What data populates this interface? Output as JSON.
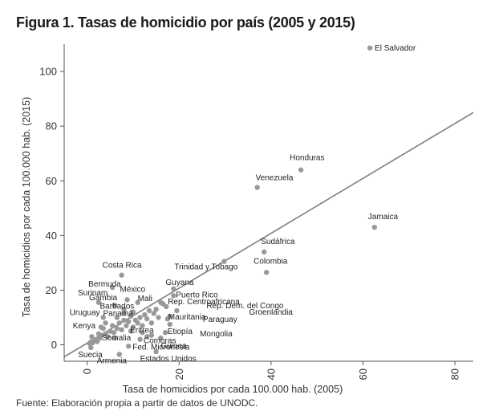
{
  "title": "Figura 1. Tasas de homicidio por país (2005 y 2015)",
  "source": "Fuente: Elaboración propia a partir de datos de UNODC.",
  "colors": {
    "point": "#999999",
    "fit_line": "#7f7f7f",
    "axis": "#555555",
    "text": "#222222"
  },
  "chart_data": {
    "type": "scatter",
    "title": "Figura 1. Tasas de homicidio por país (2005 y 2015)",
    "xlabel": "Tasa de homicidios por cada 100.000 hab. (2005)",
    "ylabel": "Tasa de homicidios por cada 100.000 hab. (2015)",
    "xlim": [
      -5,
      84
    ],
    "ylim": [
      -6,
      110
    ],
    "xticks": [
      0,
      20,
      40,
      60,
      80
    ],
    "yticks": [
      0,
      20,
      40,
      60,
      80,
      100
    ],
    "grid": false,
    "fit_line": {
      "from": [
        -5,
        -4.4
      ],
      "to": [
        84,
        85
      ]
    },
    "points": [
      {
        "x": 61.5,
        "y": 108.6,
        "label": "El Salvador"
      },
      {
        "x": 46.5,
        "y": 64.0,
        "label": "Honduras"
      },
      {
        "x": 37.0,
        "y": 57.6,
        "label": "Venezuela"
      },
      {
        "x": 62.5,
        "y": 43.0,
        "label": "Jamaica"
      },
      {
        "x": 38.5,
        "y": 34.0,
        "label": "Sudáfrica"
      },
      {
        "x": 39.0,
        "y": 26.5,
        "label": "Colombia"
      },
      {
        "x": 29.8,
        "y": 30.5,
        "label": "Trinidad y Tobago"
      },
      {
        "x": 18.8,
        "y": 20.5,
        "label": "Guyana"
      },
      {
        "x": 18.8,
        "y": 18.0,
        "label": "Puerto Rico"
      },
      {
        "x": 16.0,
        "y": 15.5,
        "label": "Rep. Dem. del Congo"
      },
      {
        "x": 17.2,
        "y": 14.0,
        "label": "Rep. Centroafricana"
      },
      {
        "x": 19.5,
        "y": 12.5,
        "label": "Groenlandia"
      },
      {
        "x": 18.0,
        "y": 10.5,
        "label": "Mauritania"
      },
      {
        "x": 17.5,
        "y": 9.5,
        "label": "Paraguay"
      },
      {
        "x": 18.0,
        "y": 7.5,
        "label": "Etiopía"
      },
      {
        "x": 17.0,
        "y": 4.5,
        "label": "Mongolia"
      },
      {
        "x": 14.0,
        "y": 3.5,
        "label": "Comoras"
      },
      {
        "x": 16.0,
        "y": 2.5,
        "label": "Guinea"
      },
      {
        "x": 11.0,
        "y": 15.5,
        "label": "Mali"
      },
      {
        "x": 8.7,
        "y": 16.5,
        "label": "México"
      },
      {
        "x": 6.0,
        "y": 14.5,
        "label": "Gambia"
      },
      {
        "x": 2.5,
        "y": 15.5,
        "label": "Surinam"
      },
      {
        "x": 5.5,
        "y": 21.0,
        "label": "Bermuda"
      },
      {
        "x": 7.5,
        "y": 25.5,
        "label": "Costa Rica"
      },
      {
        "x": 8.0,
        "y": 13.0,
        "label": "Barbados"
      },
      {
        "x": 8.0,
        "y": 11.5,
        "label": "Panamá"
      },
      {
        "x": 3.5,
        "y": 10.0,
        "label": "Uruguay"
      },
      {
        "x": 3.5,
        "y": 6.0,
        "label": "Kenya"
      },
      {
        "x": 9.5,
        "y": 5.0,
        "label": "Eritrea"
      },
      {
        "x": 6.0,
        "y": 2.5,
        "label": "Somalia"
      },
      {
        "x": 9.0,
        "y": -0.5,
        "label": "Fed. Micronesia"
      },
      {
        "x": 7.0,
        "y": -3.5,
        "label": "Armenia"
      },
      {
        "x": 0.8,
        "y": -1.0,
        "label": "Suecia"
      },
      {
        "x": 15.0,
        "y": -2.5,
        "label": "Estados Unidos"
      },
      {
        "x": 0.5,
        "y": 0.5
      },
      {
        "x": 0.8,
        "y": 1.0
      },
      {
        "x": 1.2,
        "y": 0.8
      },
      {
        "x": 1.5,
        "y": 1.5
      },
      {
        "x": 2.0,
        "y": 2.0
      },
      {
        "x": 2.2,
        "y": 1.2
      },
      {
        "x": 2.8,
        "y": 2.5
      },
      {
        "x": 3.0,
        "y": 3.5
      },
      {
        "x": 4.0,
        "y": 4.0
      },
      {
        "x": 4.5,
        "y": 3.0
      },
      {
        "x": 5.0,
        "y": 5.0
      },
      {
        "x": 5.5,
        "y": 7.0
      },
      {
        "x": 5.8,
        "y": 4.5
      },
      {
        "x": 6.5,
        "y": 6.0
      },
      {
        "x": 7.0,
        "y": 8.0
      },
      {
        "x": 7.5,
        "y": 5.5
      },
      {
        "x": 8.0,
        "y": 9.0
      },
      {
        "x": 8.5,
        "y": 7.0
      },
      {
        "x": 9.0,
        "y": 8.5
      },
      {
        "x": 9.5,
        "y": 10.5
      },
      {
        "x": 10.0,
        "y": 6.5
      },
      {
        "x": 10.5,
        "y": 9.0
      },
      {
        "x": 11.0,
        "y": 8.0
      },
      {
        "x": 11.5,
        "y": 10.0
      },
      {
        "x": 12.0,
        "y": 7.0
      },
      {
        "x": 12.5,
        "y": 11.0
      },
      {
        "x": 13.0,
        "y": 9.5
      },
      {
        "x": 13.5,
        "y": 12.5
      },
      {
        "x": 14.0,
        "y": 8.0
      },
      {
        "x": 14.5,
        "y": 11.5
      },
      {
        "x": 15.0,
        "y": 13.0
      },
      {
        "x": 15.5,
        "y": 10.0
      },
      {
        "x": 4.0,
        "y": 8.0
      },
      {
        "x": 3.0,
        "y": 6.5
      },
      {
        "x": 6.5,
        "y": 10.0
      },
      {
        "x": 10.0,
        "y": 12.0
      },
      {
        "x": 12.0,
        "y": 4.5
      },
      {
        "x": 1.0,
        "y": 3.0
      },
      {
        "x": 2.5,
        "y": 4.0
      },
      {
        "x": 11.5,
        "y": 2.0
      },
      {
        "x": 13.0,
        "y": 3.0
      },
      {
        "x": 16.5,
        "y": 15.0
      }
    ]
  }
}
